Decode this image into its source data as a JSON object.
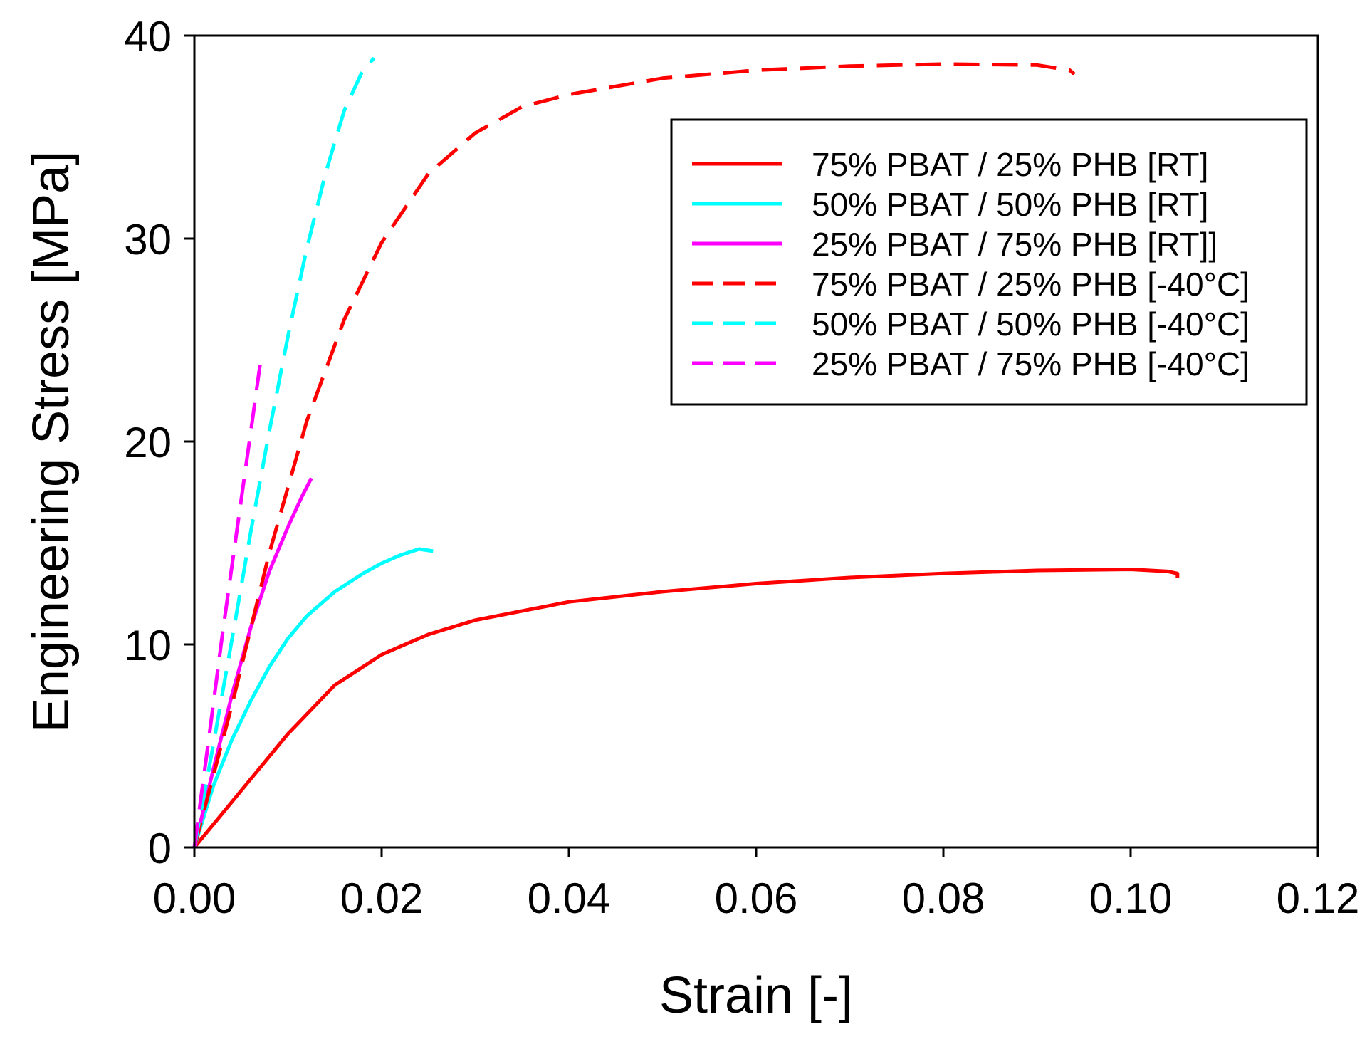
{
  "chart_data": {
    "type": "line",
    "title": "",
    "xlabel": "Strain [-]",
    "ylabel": "Engineering Stress [MPa]",
    "xlim": [
      0,
      0.12
    ],
    "ylim": [
      0,
      40
    ],
    "xticks": [
      0,
      0.02,
      0.04,
      0.06,
      0.08,
      0.1,
      0.12
    ],
    "xtick_labels": [
      "0.00",
      "0.02",
      "0.04",
      "0.06",
      "0.08",
      "0.10",
      "0.12"
    ],
    "yticks": [
      0,
      10,
      20,
      30,
      40
    ],
    "ytick_labels": [
      "0",
      "10",
      "20",
      "30",
      "40"
    ],
    "grid": false,
    "legend_position": "top-right",
    "series": [
      {
        "name": "75% PBAT / 25% PHB [RT]",
        "color": "#ff0000",
        "dash": "solid",
        "x": [
          0,
          0.005,
          0.01,
          0.015,
          0.02,
          0.025,
          0.03,
          0.04,
          0.05,
          0.06,
          0.07,
          0.08,
          0.09,
          0.1,
          0.104,
          0.105,
          0.105
        ],
        "y": [
          0,
          2.8,
          5.6,
          8.0,
          9.5,
          10.5,
          11.2,
          12.1,
          12.6,
          13.0,
          13.3,
          13.5,
          13.65,
          13.7,
          13.6,
          13.5,
          13.3
        ]
      },
      {
        "name": "50% PBAT / 50% PHB [RT]",
        "color": "#00ffff",
        "dash": "solid",
        "x": [
          0,
          0.002,
          0.004,
          0.006,
          0.008,
          0.01,
          0.012,
          0.015,
          0.018,
          0.02,
          0.022,
          0.024,
          0.0255
        ],
        "y": [
          0,
          3.0,
          5.3,
          7.2,
          8.9,
          10.3,
          11.4,
          12.6,
          13.5,
          14.0,
          14.4,
          14.7,
          14.6
        ]
      },
      {
        "name": "25% PBAT / 75% PHB [RT]]",
        "color": "#ff00ff",
        "dash": "solid",
        "x": [
          0,
          0.002,
          0.004,
          0.006,
          0.008,
          0.01,
          0.0115,
          0.0125
        ],
        "y": [
          0,
          3.8,
          7.5,
          10.8,
          13.6,
          15.8,
          17.3,
          18.2
        ]
      },
      {
        "name": "75% PBAT / 25% PHB [-40°C]",
        "color": "#ff0000",
        "dash": "dashed",
        "x": [
          0,
          0.004,
          0.008,
          0.012,
          0.016,
          0.02,
          0.025,
          0.03,
          0.035,
          0.04,
          0.05,
          0.06,
          0.07,
          0.08,
          0.09,
          0.0935,
          0.094
        ],
        "y": [
          0,
          7.0,
          14.5,
          21.0,
          26.0,
          29.8,
          33.2,
          35.2,
          36.5,
          37.1,
          37.9,
          38.3,
          38.5,
          38.6,
          38.55,
          38.3,
          38.1
        ]
      },
      {
        "name": "50% PBAT / 50% PHB [-40°C]",
        "color": "#00ffff",
        "dash": "dashed",
        "x": [
          0,
          0.002,
          0.004,
          0.006,
          0.008,
          0.01,
          0.012,
          0.014,
          0.016,
          0.018,
          0.0192
        ],
        "y": [
          0,
          5.0,
          10.2,
          15.5,
          20.5,
          25.2,
          29.5,
          33.2,
          36.3,
          38.3,
          38.9
        ]
      },
      {
        "name": "25% PBAT / 75% PHB [-40°C]",
        "color": "#ff00ff",
        "dash": "dashed",
        "x": [
          0,
          0.0015,
          0.003,
          0.0045,
          0.006,
          0.0072
        ],
        "y": [
          0,
          5.2,
          10.5,
          15.5,
          20.4,
          24.4
        ]
      }
    ]
  }
}
